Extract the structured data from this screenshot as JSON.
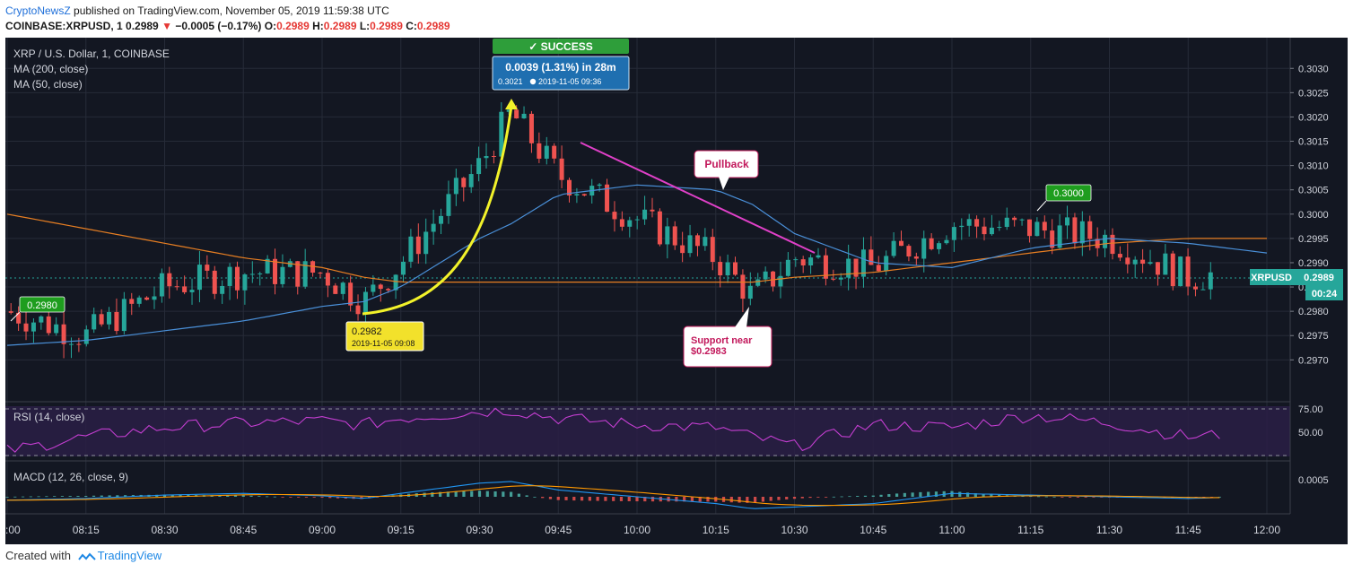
{
  "header": {
    "publisher": "CryptoNewsZ",
    "published_text": "published on TradingView.com, November 05, 2019 11:59:38 UTC",
    "symbol": "COINBASE:XRPUSD, 1",
    "last": "0.2989",
    "arrow": "▼",
    "change": "−0.0005 (−0.17%)",
    "o_label": "O:",
    "o_val": "0.2989",
    "h_label": "H:",
    "h_val": "0.2989",
    "l_label": "L:",
    "l_val": "0.2989",
    "c_label": "C:",
    "c_val": "0.2989"
  },
  "legend": {
    "title": "XRP / U.S. Dollar, 1, COINBASE",
    "ma200": "MA (200, close)",
    "ma50": "MA (50, close)",
    "rsi": "RSI (14, close)",
    "macd": "MACD (12, 26, close, 9)"
  },
  "annotations": {
    "success": "✓ SUCCESS",
    "measure_main": "0.0039 (1.31%) in 28m",
    "measure_price": "0.3021",
    "measure_time": "2019-11-05  09:36",
    "low_price": "0.2982",
    "low_time": "2019-11-05 09:08",
    "pullback": "Pullback",
    "support_line1": "Support near",
    "support_line2": "$0.2983",
    "label_left": "0.2980",
    "label_right": "0.3000",
    "symbol_tag": "XRPUSD",
    "price_tag": "0.2989",
    "countdown": "00:24"
  },
  "price_axis": [
    "0.3030",
    "0.3025",
    "0.3020",
    "0.3015",
    "0.3010",
    "0.3005",
    "0.3000",
    "0.2995",
    "0.2990",
    "0.2985",
    "0.2980",
    "0.2975",
    "0.2970"
  ],
  "rsi_axis": [
    "75.00",
    "50.00"
  ],
  "macd_axis": [
    "0.0005"
  ],
  "time_axis": [
    ":00",
    "08:15",
    "08:30",
    "08:45",
    "09:00",
    "09:15",
    "09:30",
    "09:45",
    "10:00",
    "10:15",
    "10:30",
    "10:45",
    "11:00",
    "11:15",
    "11:30",
    "11:45",
    "12:00"
  ],
  "footer": {
    "created": "Created with",
    "tradingview": "TradingView"
  },
  "colors": {
    "background": "#131722",
    "up": "#26a69a",
    "down": "#ef5350",
    "ma200": "#e67e22",
    "ma50": "#4a90d9",
    "rsi": "#c43ed1",
    "trendline": "#e040c8",
    "curve": "#f2f22a",
    "success": "#2e9e3a"
  },
  "chart_data": {
    "type": "line",
    "title": "XRP / U.S. Dollar, 1, COINBASE",
    "x": [
      "08:00",
      "08:15",
      "08:30",
      "08:45",
      "09:00",
      "09:08",
      "09:15",
      "09:30",
      "09:36",
      "09:45",
      "10:00",
      "10:15",
      "10:22",
      "10:30",
      "10:45",
      "11:00",
      "11:15",
      "11:30",
      "11:45",
      "12:00"
    ],
    "series": [
      {
        "name": "XRPUSD",
        "values": [
          0.298,
          0.2975,
          0.2985,
          0.2988,
          0.2988,
          0.2982,
          0.299,
          0.301,
          0.3021,
          0.3008,
          0.2999,
          0.2991,
          0.2983,
          0.2991,
          0.2989,
          0.2998,
          0.2997,
          0.2995,
          0.2987,
          0.2989
        ]
      },
      {
        "name": "MA (200, close)",
        "values": [
          0.3,
          0.2997,
          0.2994,
          0.2991,
          0.2989,
          0.2987,
          0.2986,
          0.2986,
          0.2986,
          0.2986,
          0.2986,
          0.2986,
          0.2986,
          0.2987,
          0.2988,
          0.299,
          0.2992,
          0.2994,
          0.2995,
          0.2995
        ]
      },
      {
        "name": "MA (50, close)",
        "values": [
          0.2973,
          0.2974,
          0.2976,
          0.2978,
          0.2981,
          0.2982,
          0.2985,
          0.2995,
          0.2998,
          0.3004,
          0.3006,
          0.3005,
          0.3002,
          0.2996,
          0.299,
          0.2989,
          0.2993,
          0.2995,
          0.2994,
          0.2992
        ]
      }
    ],
    "ylim": [
      0.2966,
      0.3033
    ],
    "grid": true,
    "rsi": {
      "name": "RSI (14, close)",
      "ylim": [
        25,
        75
      ],
      "values": [
        30,
        45,
        55,
        60,
        62,
        58,
        65,
        72,
        74,
        65,
        58,
        55,
        45,
        35,
        58,
        55,
        68,
        60,
        45,
        50
      ]
    },
    "macd": {
      "name": "MACD (12, 26, close, 9)",
      "values": [
        -0.0001,
        -5e-05,
        5e-05,
        0.0001,
        3e-05,
        -5e-05,
        0.0001,
        0.0004,
        0.00045,
        0.0002,
        0.0,
        -0.0002,
        -0.00035,
        -0.0003,
        -0.0002,
        0.0001,
        5e-05,
        0.0,
        -5e-05,
        2e-05
      ]
    }
  }
}
